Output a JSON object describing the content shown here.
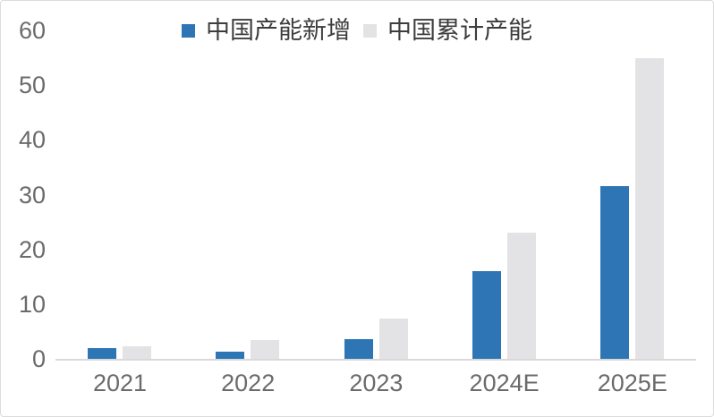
{
  "chart_data": {
    "type": "bar",
    "title": "",
    "categories": [
      "2021",
      "2022",
      "2023",
      "2024E",
      "2025E"
    ],
    "series": [
      {
        "name": "中国产能新增",
        "color": "#2E75B6",
        "values": [
          2,
          1.3,
          3.6,
          16,
          31.5
        ]
      },
      {
        "name": "中国累计产能",
        "color": "#E3E3E5",
        "values": [
          2.3,
          3.5,
          7.3,
          23,
          55
        ]
      }
    ],
    "xlabel": "",
    "ylabel": "",
    "ylim": [
      0,
      60
    ],
    "yticks": [
      0,
      10,
      20,
      30,
      40,
      50,
      60
    ],
    "grid": false,
    "legend_position": "top",
    "axis_line_color": "#D9D9D9",
    "tick_label_color": "#6B6B6B",
    "legend_text_color": "#3D3D3D"
  }
}
